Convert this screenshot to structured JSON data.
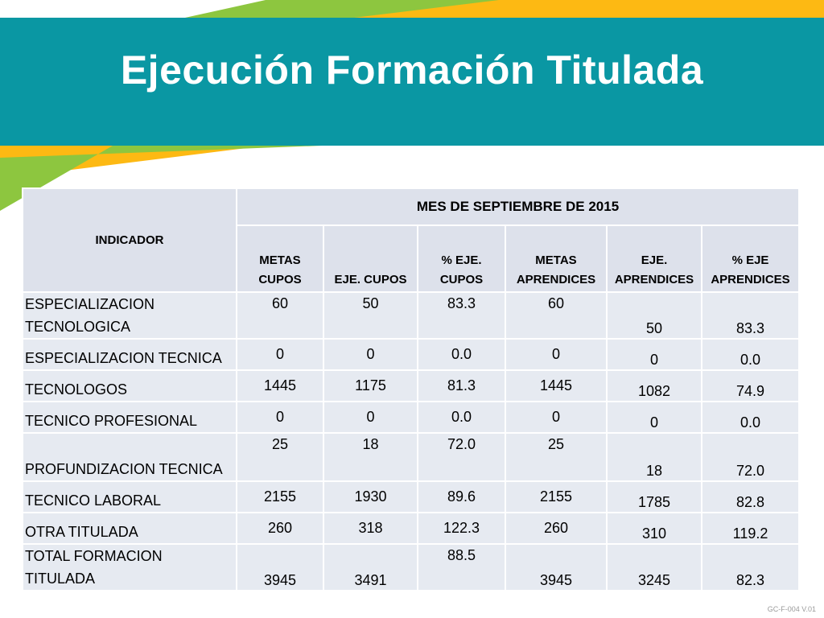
{
  "slide": {
    "title": "Ejecución Formación Titulada",
    "footer_code": "GC-F-004 V.01"
  },
  "colors": {
    "banner": "#0a97a3",
    "green": "#8dc63f",
    "yellow": "#fdb913",
    "table_cell": "#e6eaf1",
    "table_header": "#dde1eb"
  },
  "table": {
    "indicator_header": "INDICADOR",
    "period_header": "MES DE SEPTIEMBRE DE  2015",
    "columns": [
      {
        "line1": "METAS",
        "line2": "CUPOS"
      },
      {
        "line1": "",
        "line2": "EJE. CUPOS"
      },
      {
        "line1": "% EJE.",
        "line2": "CUPOS"
      },
      {
        "line1": "METAS",
        "line2": "APRENDICES"
      },
      {
        "line1": "EJE.",
        "line2": "APRENDICES"
      },
      {
        "line1": "% EJE",
        "line2": "APRENDICES"
      }
    ],
    "rows": [
      {
        "name1": "ESPECIALIZACION",
        "name2": "TECNOLOGICA",
        "values": [
          "60",
          "50",
          "83.3",
          "60",
          "50",
          "83.3"
        ]
      },
      {
        "name1": "ESPECIALIZACION TECNICA",
        "name2": "",
        "values": [
          "0",
          "0",
          "0.0",
          "0",
          "0",
          "0.0"
        ]
      },
      {
        "name1": "TECNOLOGOS",
        "name2": "",
        "values": [
          "1445",
          "1175",
          "81.3",
          "1445",
          "1082",
          "74.9"
        ]
      },
      {
        "name1": "TECNICO PROFESIONAL",
        "name2": "",
        "values": [
          "0",
          "0",
          "0.0",
          "0",
          "0",
          "0.0"
        ]
      },
      {
        "name1": "PROFUNDIZACION TECNICA",
        "name2": "",
        "values": [
          "25",
          "18",
          "72.0",
          "25",
          "18",
          "72.0"
        ]
      },
      {
        "name1": "TECNICO LABORAL",
        "name2": "",
        "values": [
          "2155",
          "1930",
          "89.6",
          "2155",
          "1785",
          "82.8"
        ]
      },
      {
        "name1": "OTRA TITULADA",
        "name2": "",
        "values": [
          "260",
          "318",
          "122.3",
          "260",
          "310",
          "119.2"
        ]
      },
      {
        "name1": "TOTAL FORMACION",
        "name2": "TITULADA",
        "values": [
          "3945",
          "3491",
          "88.5",
          "3945",
          "3245",
          "82.3"
        ]
      }
    ]
  }
}
